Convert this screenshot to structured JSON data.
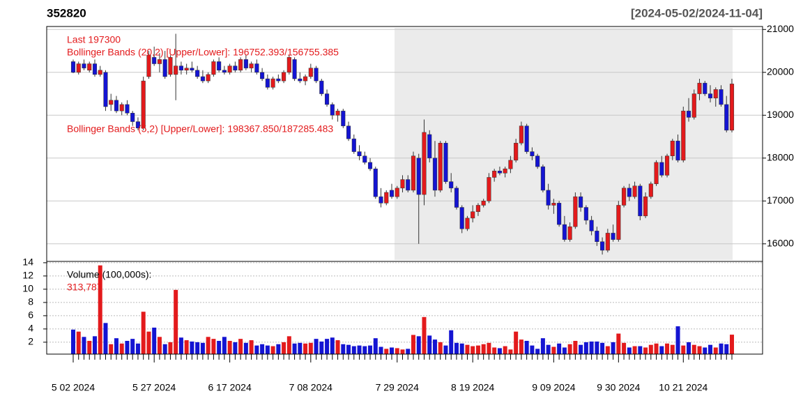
{
  "chart_data": [
    {
      "type": "candlestick",
      "title": "352820",
      "subtitle": "[2024-05-02/2024-11-04]",
      "annotations": [
        "Last 197300",
        "Bollinger Bands (20,2) [Upper/Lower]: 196752.393/156755.385",
        "Bollinger Bands (5,2) [Upper/Lower]: 198367.850/187285.483"
      ],
      "up_color": "#e31a1c",
      "down_color": "#1414d2",
      "ylim": [
        15590,
        21070
      ],
      "yticks": [
        16000,
        17000,
        18000,
        19000,
        20000,
        21000
      ],
      "grid": true,
      "ohlc": [
        [
          20250,
          20300,
          19980,
          20000
        ],
        [
          20000,
          20250,
          19950,
          20200
        ],
        [
          20200,
          20300,
          20050,
          20100
        ],
        [
          20050,
          20250,
          20000,
          20200
        ],
        [
          20200,
          20300,
          19900,
          19950
        ],
        [
          19950,
          20150,
          19900,
          20050
        ],
        [
          20000,
          20050,
          19100,
          19200
        ],
        [
          19250,
          19500,
          19100,
          19350
        ],
        [
          19350,
          19450,
          19050,
          19100
        ],
        [
          19100,
          19300,
          19000,
          19250
        ],
        [
          19250,
          19350,
          19000,
          19050
        ],
        [
          19050,
          19100,
          18750,
          18850
        ],
        [
          18850,
          18950,
          18650,
          18700
        ],
        [
          18700,
          19900,
          18650,
          19800
        ],
        [
          19900,
          20500,
          19850,
          20400
        ],
        [
          20350,
          20600,
          20150,
          20200
        ],
        [
          20200,
          20450,
          20000,
          20300
        ],
        [
          20300,
          20500,
          19850,
          19900
        ],
        [
          19950,
          20400,
          19900,
          20350
        ],
        [
          19950,
          20900,
          19350,
          20150
        ],
        [
          20150,
          20250,
          19950,
          20050
        ],
        [
          20050,
          20200,
          19950,
          20100
        ],
        [
          20100,
          20250,
          20000,
          20050
        ],
        [
          20050,
          20150,
          19850,
          19900
        ],
        [
          19900,
          20050,
          19750,
          19800
        ],
        [
          19800,
          20000,
          19750,
          19950
        ],
        [
          19950,
          20300,
          19900,
          20250
        ],
        [
          20250,
          20350,
          20000,
          20050
        ],
        [
          20050,
          20150,
          19950,
          20000
        ],
        [
          20000,
          20200,
          19950,
          20150
        ],
        [
          20150,
          20250,
          20000,
          20050
        ],
        [
          20050,
          20350,
          20000,
          20300
        ],
        [
          20300,
          20400,
          20050,
          20100
        ],
        [
          20100,
          20250,
          20000,
          20200
        ],
        [
          20200,
          20300,
          19950,
          20000
        ],
        [
          20000,
          20100,
          19800,
          19850
        ],
        [
          19850,
          19950,
          19600,
          19650
        ],
        [
          19650,
          19900,
          19600,
          19850
        ],
        [
          19850,
          19950,
          19750,
          19800
        ],
        [
          19800,
          20050,
          19750,
          20000
        ],
        [
          20000,
          20400,
          19950,
          20350
        ],
        [
          20300,
          20350,
          19800,
          19850
        ],
        [
          19850,
          20000,
          19750,
          19800
        ],
        [
          19800,
          19950,
          19700,
          19900
        ],
        [
          19900,
          20200,
          19850,
          20100
        ],
        [
          20100,
          20150,
          19750,
          19800
        ],
        [
          19800,
          19850,
          19450,
          19500
        ],
        [
          19500,
          19600,
          19200,
          19250
        ],
        [
          19250,
          19300,
          18900,
          19000
        ],
        [
          19000,
          19150,
          18850,
          19100
        ],
        [
          19100,
          19150,
          18700,
          18750
        ],
        [
          18750,
          18850,
          18400,
          18450
        ],
        [
          18450,
          18550,
          18100,
          18150
        ],
        [
          18150,
          18300,
          17950,
          18050
        ],
        [
          18050,
          18150,
          17850,
          17900
        ],
        [
          17900,
          18000,
          17700,
          17750
        ],
        [
          17750,
          17800,
          17050,
          17100
        ],
        [
          17100,
          17300,
          16850,
          16950
        ],
        [
          16950,
          17250,
          16900,
          17200
        ],
        [
          17250,
          17400,
          17050,
          17100
        ],
        [
          17100,
          17350,
          17050,
          17300
        ],
        [
          17300,
          17600,
          17200,
          17500
        ],
        [
          17500,
          17600,
          17200,
          17250
        ],
        [
          17250,
          18150,
          17200,
          18050
        ],
        [
          18000,
          18100,
          16000,
          17150
        ],
        [
          17150,
          18900,
          16900,
          18600
        ],
        [
          18550,
          18650,
          17900,
          18000
        ],
        [
          18000,
          18400,
          17100,
          17250
        ],
        [
          17250,
          18400,
          17200,
          18350
        ],
        [
          18350,
          18400,
          17400,
          17450
        ],
        [
          17450,
          17650,
          17200,
          17300
        ],
        [
          17300,
          17350,
          16800,
          16850
        ],
        [
          16850,
          16900,
          16250,
          16350
        ],
        [
          16350,
          16650,
          16300,
          16600
        ],
        [
          16600,
          16900,
          16500,
          16750
        ],
        [
          16750,
          16950,
          16650,
          16900
        ],
        [
          16900,
          17050,
          16850,
          17000
        ],
        [
          17000,
          17650,
          16950,
          17550
        ],
        [
          17550,
          17750,
          17450,
          17700
        ],
        [
          17700,
          17800,
          17600,
          17650
        ],
        [
          17650,
          17800,
          17550,
          17750
        ],
        [
          17750,
          18050,
          17650,
          17950
        ],
        [
          17950,
          18450,
          17900,
          18350
        ],
        [
          18350,
          18850,
          18300,
          18750
        ],
        [
          18750,
          18800,
          18100,
          18150
        ],
        [
          18150,
          18250,
          17950,
          18050
        ],
        [
          18050,
          18100,
          17750,
          17800
        ],
        [
          17800,
          17850,
          17200,
          17250
        ],
        [
          17250,
          17400,
          16800,
          16900
        ],
        [
          16900,
          17050,
          16700,
          16950
        ],
        [
          16950,
          17000,
          16400,
          16450
        ],
        [
          16450,
          16650,
          16050,
          16100
        ],
        [
          16100,
          16500,
          16050,
          16400
        ],
        [
          16400,
          17200,
          16350,
          17100
        ],
        [
          17100,
          17200,
          16750,
          16850
        ],
        [
          16850,
          16900,
          16450,
          16550
        ],
        [
          16550,
          16650,
          16200,
          16300
        ],
        [
          16300,
          16400,
          15950,
          16050
        ],
        [
          16050,
          16150,
          15750,
          15850
        ],
        [
          15850,
          16350,
          15800,
          16250
        ],
        [
          16250,
          16450,
          16050,
          16100
        ],
        [
          16100,
          17000,
          16050,
          16900
        ],
        [
          16900,
          17350,
          16850,
          17300
        ],
        [
          17300,
          17400,
          17000,
          17100
        ],
        [
          17100,
          17450,
          17050,
          17350
        ],
        [
          17350,
          17400,
          16550,
          16650
        ],
        [
          16650,
          17200,
          16600,
          17100
        ],
        [
          17100,
          17450,
          17050,
          17400
        ],
        [
          17400,
          17950,
          17350,
          17900
        ],
        [
          17900,
          18050,
          17550,
          17600
        ],
        [
          17600,
          18100,
          17550,
          18050
        ],
        [
          18050,
          18450,
          17950,
          18400
        ],
        [
          18400,
          18550,
          17900,
          17950
        ],
        [
          17950,
          19200,
          17900,
          19100
        ],
        [
          19100,
          19400,
          18850,
          18950
        ],
        [
          18950,
          19600,
          18900,
          19500
        ],
        [
          19500,
          19850,
          19350,
          19750
        ],
        [
          19750,
          19800,
          19450,
          19500
        ],
        [
          19500,
          19700,
          19300,
          19400
        ],
        [
          19400,
          19650,
          19200,
          19600
        ],
        [
          19600,
          19700,
          19200,
          19250
        ],
        [
          19250,
          19450,
          18600,
          18650
        ],
        [
          18650,
          19850,
          18600,
          19730
        ]
      ]
    },
    {
      "type": "bar",
      "title": "Volume (100,000s):",
      "last_label": "313,787",
      "ylim": [
        0.2,
        14.2
      ],
      "yticks": [
        2,
        4,
        6,
        8,
        10,
        12,
        14
      ],
      "grid": true,
      "categories": [
        "5 02 2024",
        null,
        null,
        null,
        null,
        null,
        null,
        null,
        null,
        null,
        null,
        null,
        null,
        null,
        null,
        "5 27 2024",
        null,
        null,
        null,
        null,
        null,
        null,
        null,
        null,
        null,
        null,
        null,
        null,
        null,
        "6 17 2024",
        null,
        null,
        null,
        null,
        null,
        null,
        null,
        null,
        null,
        null,
        null,
        null,
        null,
        null,
        "7 08 2024",
        null,
        null,
        null,
        null,
        null,
        null,
        null,
        null,
        null,
        null,
        null,
        null,
        null,
        null,
        null,
        "7 29 2024",
        null,
        null,
        null,
        null,
        null,
        null,
        null,
        null,
        null,
        null,
        null,
        null,
        null,
        "8 19 2024",
        null,
        null,
        null,
        null,
        null,
        null,
        null,
        null,
        null,
        null,
        null,
        null,
        null,
        null,
        "9 09 2024",
        null,
        null,
        null,
        null,
        null,
        null,
        null,
        null,
        null,
        null,
        null,
        "9 30 2024",
        null,
        null,
        null,
        null,
        null,
        null,
        null,
        null,
        null,
        null,
        null,
        "10 21 2024",
        null,
        null,
        null,
        null,
        null,
        null,
        null,
        null,
        null
      ],
      "values": [
        3.9,
        3.6,
        2.8,
        2.2,
        2.9,
        13.6,
        4.9,
        1.7,
        2.6,
        1.8,
        2.2,
        2.5,
        1.8,
        6.6,
        3.6,
        4.2,
        2.8,
        1.7,
        2.0,
        9.9,
        2.7,
        2.3,
        2.1,
        2.0,
        1.9,
        2.8,
        2.5,
        2.2,
        2.8,
        2.2,
        2.0,
        2.5,
        1.9,
        2.3,
        1.5,
        1.7,
        1.5,
        1.4,
        1.7,
        2.0,
        2.9,
        1.8,
        1.9,
        1.8,
        1.9,
        2.5,
        2.1,
        2.5,
        2.7,
        2.3,
        1.7,
        1.6,
        1.4,
        1.5,
        1.4,
        1.5,
        2.6,
        1.3,
        1.0,
        1.2,
        1.1,
        0.9,
        1.0,
        3.1,
        2.9,
        5.8,
        3.0,
        2.4,
        2.0,
        1.5,
        3.8,
        1.9,
        1.8,
        1.6,
        1.4,
        1.5,
        1.7,
        1.9,
        1.2,
        1.1,
        1.4,
        0.9,
        3.6,
        2.4,
        2.2,
        1.5,
        1.0,
        2.6,
        1.6,
        1.3,
        1.8,
        1.2,
        1.7,
        2.2,
        1.6,
        2.0,
        2.1,
        2.1,
        1.9,
        1.4,
        2.0,
        3.3,
        1.9,
        1.2,
        1.4,
        1.4,
        1.2,
        1.6,
        1.8,
        1.4,
        1.8,
        1.6,
        4.4,
        1.5,
        2.0,
        1.6,
        1.4,
        1.2,
        1.6,
        1.2,
        1.8,
        1.7,
        3.13787
      ]
    }
  ]
}
